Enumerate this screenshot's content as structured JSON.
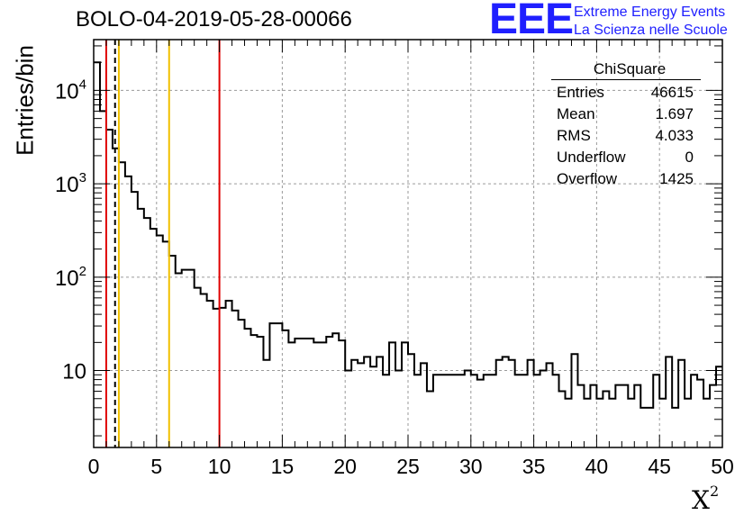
{
  "title": "BOLO-04-2019-05-28-00066",
  "logo": {
    "mark": "EEE",
    "line1": "Extreme Energy Events",
    "line2": "La Scienza nelle Scuole",
    "color": "#1f1fff"
  },
  "stats": {
    "title": "ChiSquare",
    "rows": [
      {
        "label": "Entries",
        "value": "46615"
      },
      {
        "label": "Mean",
        "value": "1.697"
      },
      {
        "label": "RMS",
        "value": "4.033"
      },
      {
        "label": "Underflow",
        "value": "0"
      },
      {
        "label": "Overflow",
        "value": "1425"
      }
    ]
  },
  "chart_data": {
    "type": "histogram",
    "title": "BOLO-04-2019-05-28-00066",
    "xlabel": "X",
    "xlabel_superscript": "2",
    "ylabel": "Entries/bin",
    "xlim": [
      0,
      50
    ],
    "ylim": [
      1.5,
      35000
    ],
    "yscale": "log",
    "grid": true,
    "bin_width": 0.5,
    "x_ticks": [
      "0",
      "5",
      "10",
      "15",
      "20",
      "25",
      "30",
      "35",
      "40",
      "45",
      "50"
    ],
    "y_ticks": [
      {
        "base": "10",
        "exp": "4",
        "value": 10000
      },
      {
        "base": "10",
        "exp": "3",
        "value": 1000
      },
      {
        "base": "10",
        "exp": "2",
        "value": 100
      },
      {
        "base": "10",
        "exp": "",
        "value": 10
      }
    ],
    "bin_values": [
      20000,
      6000,
      3800,
      2400,
      1700,
      1200,
      820,
      540,
      430,
      330,
      280,
      240,
      170,
      110,
      120,
      120,
      77,
      66,
      56,
      46,
      47,
      56,
      44,
      35,
      28,
      24,
      23,
      13,
      32,
      32,
      27,
      20,
      22,
      22,
      22,
      20,
      20,
      23,
      25,
      21,
      10,
      13,
      12,
      14,
      11,
      14,
      9,
      20,
      10,
      20,
      15,
      9,
      12,
      6,
      9,
      9,
      9,
      9,
      9,
      10,
      9,
      8,
      9,
      9,
      13,
      14,
      13,
      9,
      9,
      13,
      9,
      10,
      12,
      9,
      6,
      5,
      15,
      7,
      5,
      7,
      5,
      6,
      5,
      7,
      7,
      5,
      7,
      4,
      4,
      9,
      5,
      14,
      4,
      13,
      5,
      9,
      8,
      5,
      7,
      11
    ],
    "vertical_lines": [
      {
        "x": 1.0,
        "color": "#e00000",
        "style": "solid"
      },
      {
        "x": 1.7,
        "color": "#000000",
        "style": "dashed"
      },
      {
        "x": 2.0,
        "color": "#f0c000",
        "style": "solid"
      },
      {
        "x": 6.0,
        "color": "#f0c000",
        "style": "solid"
      },
      {
        "x": 10.0,
        "color": "#e00000",
        "style": "solid"
      }
    ]
  }
}
